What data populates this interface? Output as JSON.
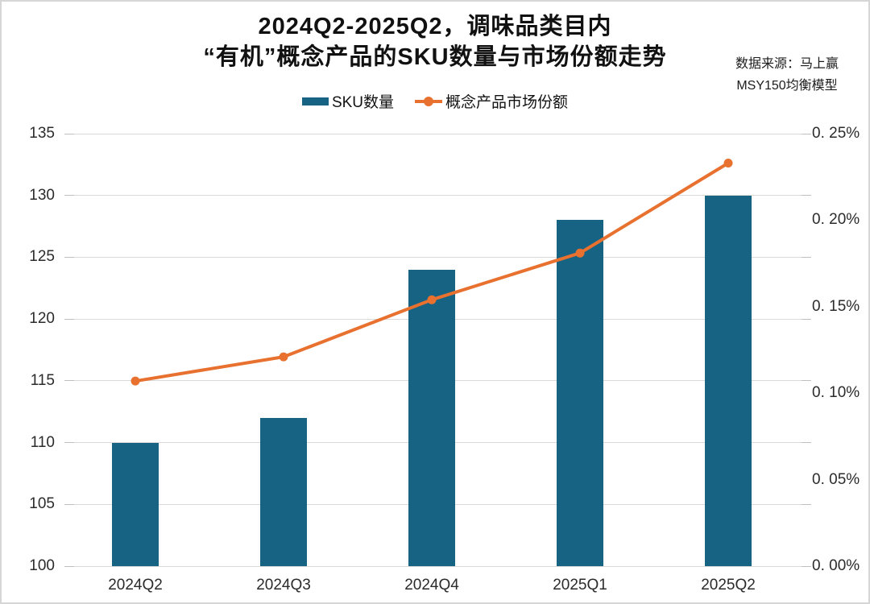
{
  "title": {
    "line1": "2024Q2-2025Q2，调味品类目内",
    "line2": "“有机”概念产品的SKU数量与市场份额走势"
  },
  "source_note": {
    "line1": "数据来源：马上赢",
    "line2": "MSY150均衡模型"
  },
  "legend": {
    "items": [
      {
        "label": "SKU数量",
        "marker": "bar-swatch"
      },
      {
        "label": "概念产品市场份额",
        "marker": "line-dot-swatch"
      }
    ]
  },
  "colors": {
    "bar": "#166384",
    "line": "#e8712f",
    "grid": "#d9d9d9",
    "text": "#111111"
  },
  "chart_data": {
    "type": "bar",
    "subtype": "bar+line dual axis",
    "title": "2024Q2-2025Q2，调味品类目内“有机”概念产品的SKU数量与市场份额走势",
    "categories": [
      "2024Q2",
      "2024Q3",
      "2024Q4",
      "2025Q1",
      "2025Q2"
    ],
    "series": [
      {
        "name": "SKU数量",
        "type": "bar",
        "axis": "left",
        "color": "#166384",
        "values": [
          110,
          112,
          124,
          128,
          130
        ]
      },
      {
        "name": "概念产品市场份额",
        "type": "line",
        "axis": "right",
        "color": "#e8712f",
        "values_percent": [
          0.107,
          0.121,
          0.154,
          0.181,
          0.233
        ]
      }
    ],
    "left_axis": {
      "min": 100,
      "max": 135,
      "step": 5,
      "tick_labels": [
        "100",
        "105",
        "110",
        "115",
        "120",
        "125",
        "130",
        "135"
      ]
    },
    "right_axis": {
      "min": 0,
      "max": 0.25,
      "step": 0.05,
      "unit": "%",
      "tick_labels": [
        "0. 00%",
        "0. 05%",
        "0. 10%",
        "0. 15%",
        "0. 20%",
        "0. 25%"
      ],
      "tick_values": [
        0.0,
        0.05,
        0.1,
        0.15,
        0.2,
        0.25
      ]
    },
    "grid": true,
    "legend_position": "top"
  }
}
